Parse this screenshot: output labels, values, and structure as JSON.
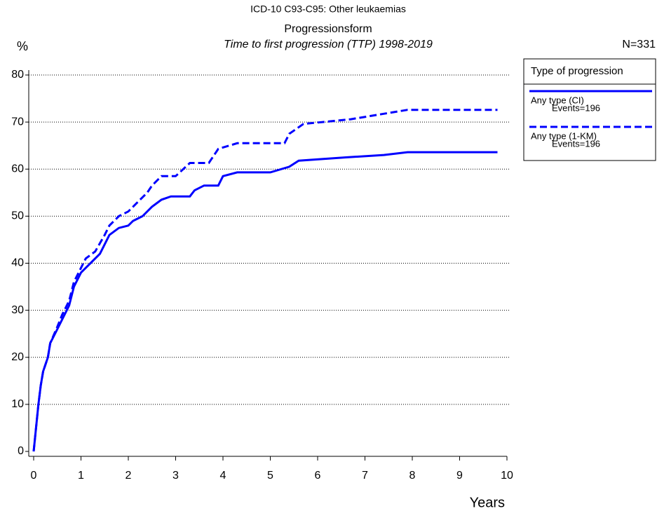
{
  "chart_data": {
    "type": "line",
    "title": "ICD-10 C93-C95: Other leukaemias",
    "subtitle": "Progressionsform",
    "subtitle2": "Time to first progression (TTP) 1998-2019",
    "y_label": "%",
    "x_label": "Years",
    "n_label": "N=331",
    "legend_title": "Type of progression",
    "xlim": [
      0,
      10
    ],
    "xticks": [
      0,
      1,
      2,
      3,
      4,
      5,
      6,
      7,
      8,
      9,
      10
    ],
    "ylim": [
      0,
      80
    ],
    "yticks": [
      0,
      10,
      20,
      30,
      40,
      50,
      60,
      70,
      80
    ],
    "grid": true,
    "series": [
      {
        "name": "Any type (CI)",
        "events": "Events=196",
        "color": "#0000ff",
        "dashed": false,
        "x": [
          0,
          0.05,
          0.1,
          0.15,
          0.2,
          0.3,
          0.35,
          0.5,
          0.6,
          0.75,
          0.85,
          1.0,
          1.2,
          1.4,
          1.5,
          1.6,
          1.8,
          2.0,
          2.1,
          2.3,
          2.5,
          2.7,
          2.9,
          3.3,
          3.4,
          3.6,
          3.9,
          4.0,
          4.3,
          5.0,
          5.4,
          5.6,
          6.6,
          7.4,
          7.9,
          9.8
        ],
        "values": [
          0,
          5,
          10,
          14,
          17,
          20,
          23,
          26,
          28,
          31,
          35,
          38,
          40,
          42,
          44,
          46,
          47.5,
          48,
          49,
          50,
          52,
          53.5,
          54.2,
          54.2,
          55.5,
          56.5,
          56.5,
          58.5,
          59.3,
          59.3,
          60.5,
          61.8,
          62.5,
          63,
          63.6,
          63.6
        ]
      },
      {
        "name": "Any type (1-KM)",
        "events": "Events=196",
        "color": "#0000ff",
        "dashed": true,
        "x": [
          0,
          0.05,
          0.1,
          0.15,
          0.2,
          0.3,
          0.35,
          0.5,
          0.6,
          0.75,
          0.85,
          1.0,
          1.1,
          1.3,
          1.5,
          1.6,
          1.8,
          2.0,
          2.2,
          2.4,
          2.5,
          2.7,
          3.0,
          3.3,
          3.7,
          3.9,
          4.3,
          5.3,
          5.4,
          5.7,
          6.7,
          7.3,
          7.9,
          9.8
        ],
        "values": [
          0,
          5,
          10,
          14,
          17,
          20,
          23,
          26.5,
          29,
          32,
          36,
          39,
          41,
          42.5,
          46,
          48,
          50,
          51,
          53,
          55,
          56.5,
          58.5,
          58.5,
          61.3,
          61.3,
          64.3,
          65.5,
          65.5,
          67.5,
          69.6,
          70.6,
          71.6,
          72.6,
          72.6
        ]
      }
    ]
  }
}
